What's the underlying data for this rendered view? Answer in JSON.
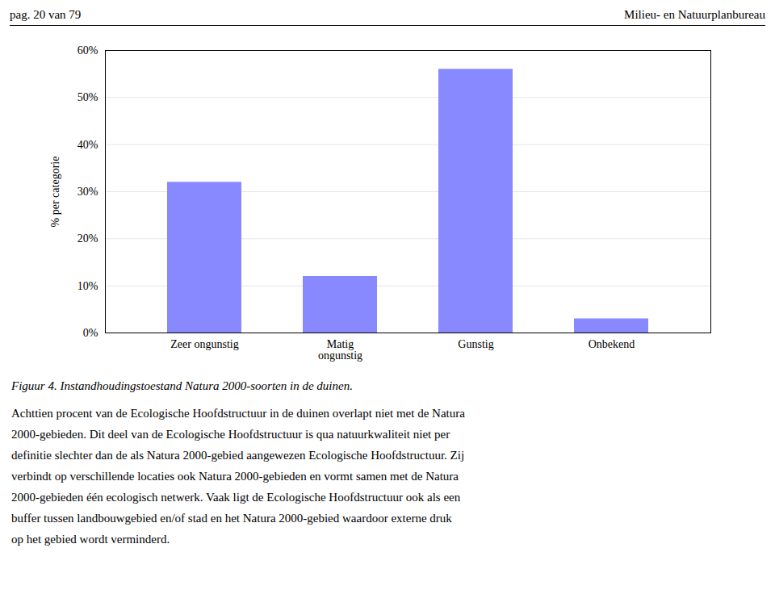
{
  "chart_data": {
    "type": "bar",
    "title": "Figuur 4. Instandhoudingstoestand Natura 2000-soorten in de duinen.",
    "annotations": [
      "pag. 20 van 79",
      "Milieu- en Natuurplanbureau",
      "Achttien procent van de Ecologische Hoofdstructuur in de duinen overlapt niet met de Natura",
      "2000-gebieden. Dit deel van de Ecologische Hoofdstructuur is qua natuurkwaliteit niet per",
      "definitie slechter dan de als Natura 2000-gebied aangewezen Ecologische Hoofdstructuur. Zij",
      "verbindt op verschillende locaties ook Natura 2000-gebieden en vormt samen met de Natura",
      "2000-gebieden één ecologisch netwerk. Vaak ligt de Ecologische Hoofdstructuur ook als een",
      "buffer tussen landbouwgebied en/of stad en het Natura 2000-gebied waardoor externe druk",
      "op het gebied wordt verminderd."
    ],
    "categories": [
      "Zeer ongunstig",
      "Matig\nongunstig",
      "Gunstig",
      "Onbekend"
    ],
    "values": [
      32,
      12,
      56,
      3
    ],
    "color": "#8888ff",
    "ylabel": "% per categorie",
    "ylim": [
      0,
      60
    ],
    "yticks": [
      {
        "value": 0,
        "label": "0%"
      },
      {
        "value": 10,
        "label": "10%"
      },
      {
        "value": 20,
        "label": "20%"
      },
      {
        "value": 30,
        "label": "30%"
      },
      {
        "value": 40,
        "label": "40%"
      },
      {
        "value": 50,
        "label": "50%"
      },
      {
        "value": 60,
        "label": "60%"
      }
    ],
    "grid": true
  }
}
